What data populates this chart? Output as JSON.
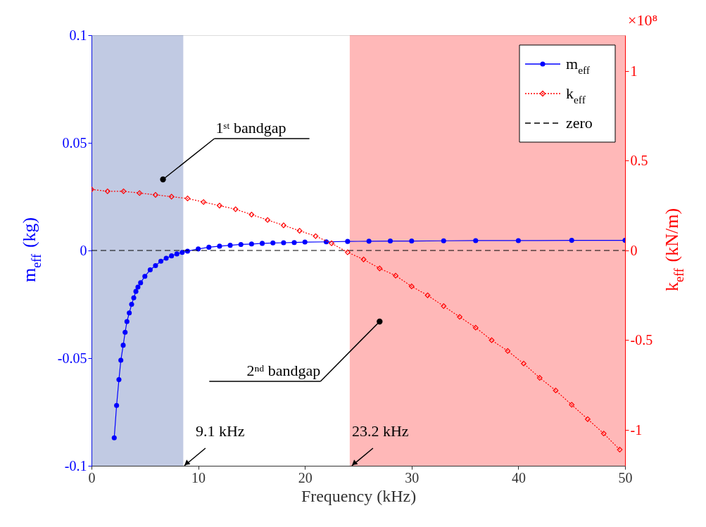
{
  "chart_data": {
    "type": "line",
    "xlabel": "Frequency (kHz)",
    "ylabel": "m$_{eff}$ (kg)",
    "y2label": "k$_{eff}$ (kN/m)",
    "xlim": [
      0,
      50
    ],
    "xticks": [
      0,
      10,
      20,
      30,
      40,
      50
    ],
    "ylim": [
      -0.1,
      0.1
    ],
    "yticks": [
      -0.1,
      -0.05,
      0,
      0.05,
      0.1
    ],
    "y2lim": [
      -1.2,
      1.2
    ],
    "y2ticks": [
      -1,
      -0.5,
      0,
      0.5,
      1
    ],
    "grid": false,
    "legend": "top right",
    "series": [
      {
        "name": "m$_{eff}$",
        "color": "#0000ff",
        "marker": "circle",
        "line_style": "solid",
        "x": [
          2.13,
          2.35,
          2.57,
          2.75,
          2.97,
          3.15,
          3.32,
          3.54,
          3.76,
          3.96,
          4.16,
          4.35,
          4.6,
          5,
          5.5,
          6,
          6.5,
          7,
          7.5,
          8,
          8.5,
          9,
          10,
          11,
          12,
          13,
          14,
          15,
          16,
          17,
          18,
          19,
          20,
          22,
          24,
          26,
          28,
          30,
          33,
          36,
          40,
          45,
          50
        ],
        "values": [
          -0.087,
          -0.072,
          -0.06,
          -0.051,
          -0.044,
          -0.038,
          -0.033,
          -0.029,
          -0.025,
          -0.022,
          -0.019,
          -0.017,
          -0.015,
          -0.012,
          -0.009,
          -0.007,
          -0.005,
          -0.0036,
          -0.0025,
          -0.0016,
          -0.0009,
          -0.0003,
          0.0007,
          0.0015,
          0.002,
          0.0024,
          0.0028,
          0.003,
          0.0033,
          0.0035,
          0.0036,
          0.0037,
          0.0039,
          0.004,
          0.0042,
          0.0043,
          0.0044,
          0.0044,
          0.0045,
          0.0046,
          0.0046,
          0.0047,
          0.0047
        ]
      },
      {
        "name": "k$_{eff}$",
        "color": "#ff0000",
        "marker": "diamond",
        "line_style": "dotted",
        "axis": "y2",
        "x": [
          0,
          1.5,
          3,
          4.5,
          6,
          7.5,
          9,
          10.5,
          12,
          13.5,
          15,
          16.5,
          18,
          19.5,
          21,
          22.5,
          24,
          25.5,
          27,
          28.5,
          30,
          31.5,
          33,
          34.5,
          36,
          37.5,
          39,
          40.5,
          42,
          43.5,
          45,
          46.5,
          48,
          49.5
        ],
        "values": [
          0.34,
          0.33,
          0.33,
          0.32,
          0.31,
          0.3,
          0.29,
          0.27,
          0.25,
          0.23,
          0.2,
          0.17,
          0.14,
          0.11,
          0.08,
          0.04,
          -0.01,
          -0.05,
          -0.1,
          -0.14,
          -0.2,
          -0.25,
          -0.31,
          -0.37,
          -0.43,
          -0.5,
          -0.56,
          -0.63,
          -0.71,
          -0.78,
          -0.86,
          -0.94,
          -1.02,
          -1.11
        ]
      },
      {
        "name": "zero",
        "color": "#000000",
        "marker": "none",
        "line_style": "dashed",
        "x": [
          0,
          50
        ],
        "values": [
          0,
          0
        ]
      }
    ],
    "bands": [
      {
        "axis": "x",
        "from": 0,
        "to": 8.6,
        "color": "#1f3f99"
      },
      {
        "axis": "x",
        "from": 24.2,
        "to": 50,
        "color": "#ff0000"
      }
    ],
    "annotations": [
      {
        "text": "1ˢᵗ bandgap",
        "x": 6.7,
        "y": 0.033
      },
      {
        "text": "2ⁿᵈ bandgap",
        "x": 27,
        "y": -0.033
      },
      {
        "text": "9.1 kHz",
        "x": 8.7,
        "y": -0.1
      },
      {
        "text": "23.2 kHz",
        "x": 24.4,
        "y": -0.1
      },
      "×10⁸"
    ]
  }
}
